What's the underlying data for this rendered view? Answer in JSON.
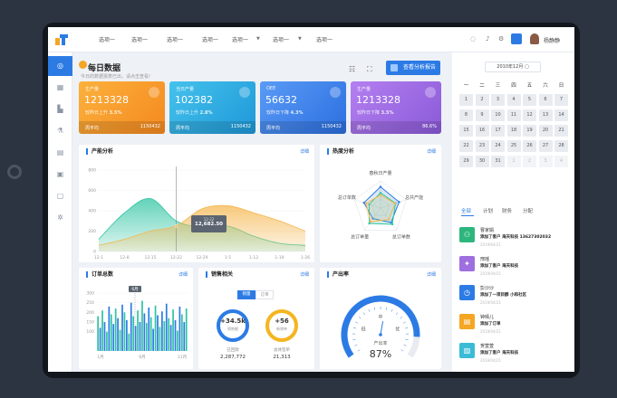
{
  "topbar": {
    "menus": [
      "选项一",
      "选项一",
      "选项一",
      "选项一",
      "选项一",
      "选项一",
      "选项一"
    ],
    "username": "杨静静"
  },
  "sidebar": {
    "icons": [
      "dashboard-icon",
      "grid-icon",
      "chart-icon",
      "flask-icon",
      "book-icon",
      "file-icon",
      "window-icon",
      "settings-icon"
    ]
  },
  "header": {
    "title": "每日数据",
    "subtitle": "今日的数据报表已出，请点击查看!",
    "report_button": "查看分析报告"
  },
  "kpis": [
    {
      "label": "生产量",
      "value": "1213328",
      "compare": "较昨日上升",
      "pct": "3.5%",
      "foot_label": "周平均",
      "foot_value": "1150432",
      "color": "#f5a623"
    },
    {
      "label": "当日产量",
      "value": "102382",
      "compare": "较昨日上升",
      "pct": "2.8%",
      "foot_label": "周平均",
      "foot_value": "1150432",
      "color": "#2aa8e0"
    },
    {
      "label": "OEE",
      "value": "56632",
      "compare": "较昨日下降",
      "pct": "4.3%",
      "foot_label": "周平均",
      "foot_value": "1150432",
      "color": "#3d7de8"
    },
    {
      "label": "生产量",
      "value": "1213328",
      "compare": "较昨日下降",
      "pct": "3.5%",
      "foot_label": "周平均",
      "foot_value": "86.6%",
      "color": "#9f6fe0"
    }
  ],
  "production": {
    "title": "产能分析",
    "link": "详细",
    "tooltip": {
      "date": "12-22",
      "value": "12,682.50"
    }
  },
  "heat": {
    "title": "热度分析",
    "link": "详细"
  },
  "orders": {
    "title": "订单总数",
    "link": "详细",
    "marker": "6月",
    "x_labels": [
      "1月",
      "6月",
      "11月"
    ]
  },
  "sales": {
    "title": "销售相关",
    "link": "详细",
    "tabs": [
      "销量",
      "订单"
    ],
    "left": {
      "delta": "+34.5k",
      "ring_label": "销售额",
      "caption": "已回款",
      "value": "2,287,772"
    },
    "right": {
      "delta": "+56",
      "ring_label": "新增单",
      "caption": "总体签单",
      "value": "21,313"
    }
  },
  "output": {
    "title": "产出率",
    "link": "详细",
    "caption": "产出率",
    "value": "87%",
    "scale_low": "低",
    "scale_mid": "中",
    "scale_high": "优",
    "level": 0.87
  },
  "calendar": {
    "month": "2010年12月",
    "weekdays": [
      "一",
      "二",
      "三",
      "四",
      "五",
      "六",
      "日"
    ],
    "days": [
      "1",
      "2",
      "3",
      "4",
      "5",
      "6",
      "7",
      "8",
      "9",
      "10",
      "11",
      "12",
      "13",
      "14",
      "15",
      "16",
      "17",
      "18",
      "19",
      "20",
      "21",
      "22",
      "23",
      "24",
      "25",
      "26",
      "27",
      "28",
      "29",
      "30",
      "31",
      "1",
      "2",
      "3",
      "4"
    ]
  },
  "feed_tabs": [
    "全部",
    "计划",
    "财务",
    "分配"
  ],
  "feed": [
    {
      "name": "曹家娟",
      "desc": "添加了客户 海天科技 13627302032",
      "time": "2019/04/21",
      "color": "#2cb67d",
      "icon": "user-add-icon"
    },
    {
      "name": "邢瑶",
      "desc": "添加了客户 海天科技",
      "time": "2019/04/21",
      "color": "#9f6fe0",
      "icon": "bulb-icon"
    },
    {
      "name": "彭沙沙",
      "desc": "添加了一项目醇 小和社区",
      "time": "2019/04/21",
      "color": "#2c7be5",
      "icon": "clock-icon"
    },
    {
      "name": "钟晴儿",
      "desc": "添加了订单",
      "time": "2019/04/21",
      "color": "#f5a623",
      "icon": "document-icon"
    },
    {
      "name": "贺萱萱",
      "desc": "添加了客户 海天科技",
      "time": "2019/04/21",
      "color": "#3bbcd5",
      "icon": "image-icon"
    }
  ],
  "chart_data": [
    {
      "type": "area",
      "title": "产能分析",
      "x": [
        "12-1",
        "12-8",
        "12-15",
        "12-22",
        "12-29",
        "1-5",
        "1-12",
        "1-19",
        "1-26"
      ],
      "ylim": [
        0,
        800
      ],
      "yticks": [
        "0",
        "200",
        "400",
        "600",
        "800"
      ],
      "series": [
        {
          "values": [
            120,
            380,
            520,
            300,
            240,
            250,
            150,
            80,
            60
          ],
          "color": "#2ec4a2"
        },
        {
          "values": [
            60,
            120,
            200,
            250,
            420,
            450,
            380,
            300,
            200
          ],
          "color": "#f5b74f"
        }
      ]
    },
    {
      "type": "radar",
      "title": "热度分析",
      "axes": [
        "春秋日产量",
        "总共产能",
        "总订单数",
        "总订单量",
        "总订单数"
      ],
      "series": [
        {
          "values": [
            0.78,
            0.72,
            0.66,
            0.48,
            0.64
          ],
          "color": "#2c7be5"
        },
        {
          "values": [
            0.56,
            0.58,
            0.74,
            0.7,
            0.44
          ],
          "color": "#2ec4a2"
        },
        {
          "values": [
            0.48,
            0.56,
            0.52,
            0.62,
            0.56
          ],
          "color": "#f5b74f"
        }
      ]
    },
    {
      "type": "bar",
      "title": "订单总数",
      "yticks": [
        "300",
        "250",
        "200",
        "150",
        "100"
      ],
      "ylim": [
        0,
        300
      ],
      "values": [
        180,
        120,
        210,
        150,
        100,
        230,
        190,
        140,
        220,
        170,
        110,
        240,
        200,
        160,
        90,
        250,
        180,
        130,
        210,
        150,
        260,
        195,
        145,
        225,
        175,
        115,
        235,
        185,
        125,
        205,
        155,
        245,
        170,
        135,
        215,
        160,
        105,
        230,
        190,
        150,
        220
      ]
    }
  ]
}
